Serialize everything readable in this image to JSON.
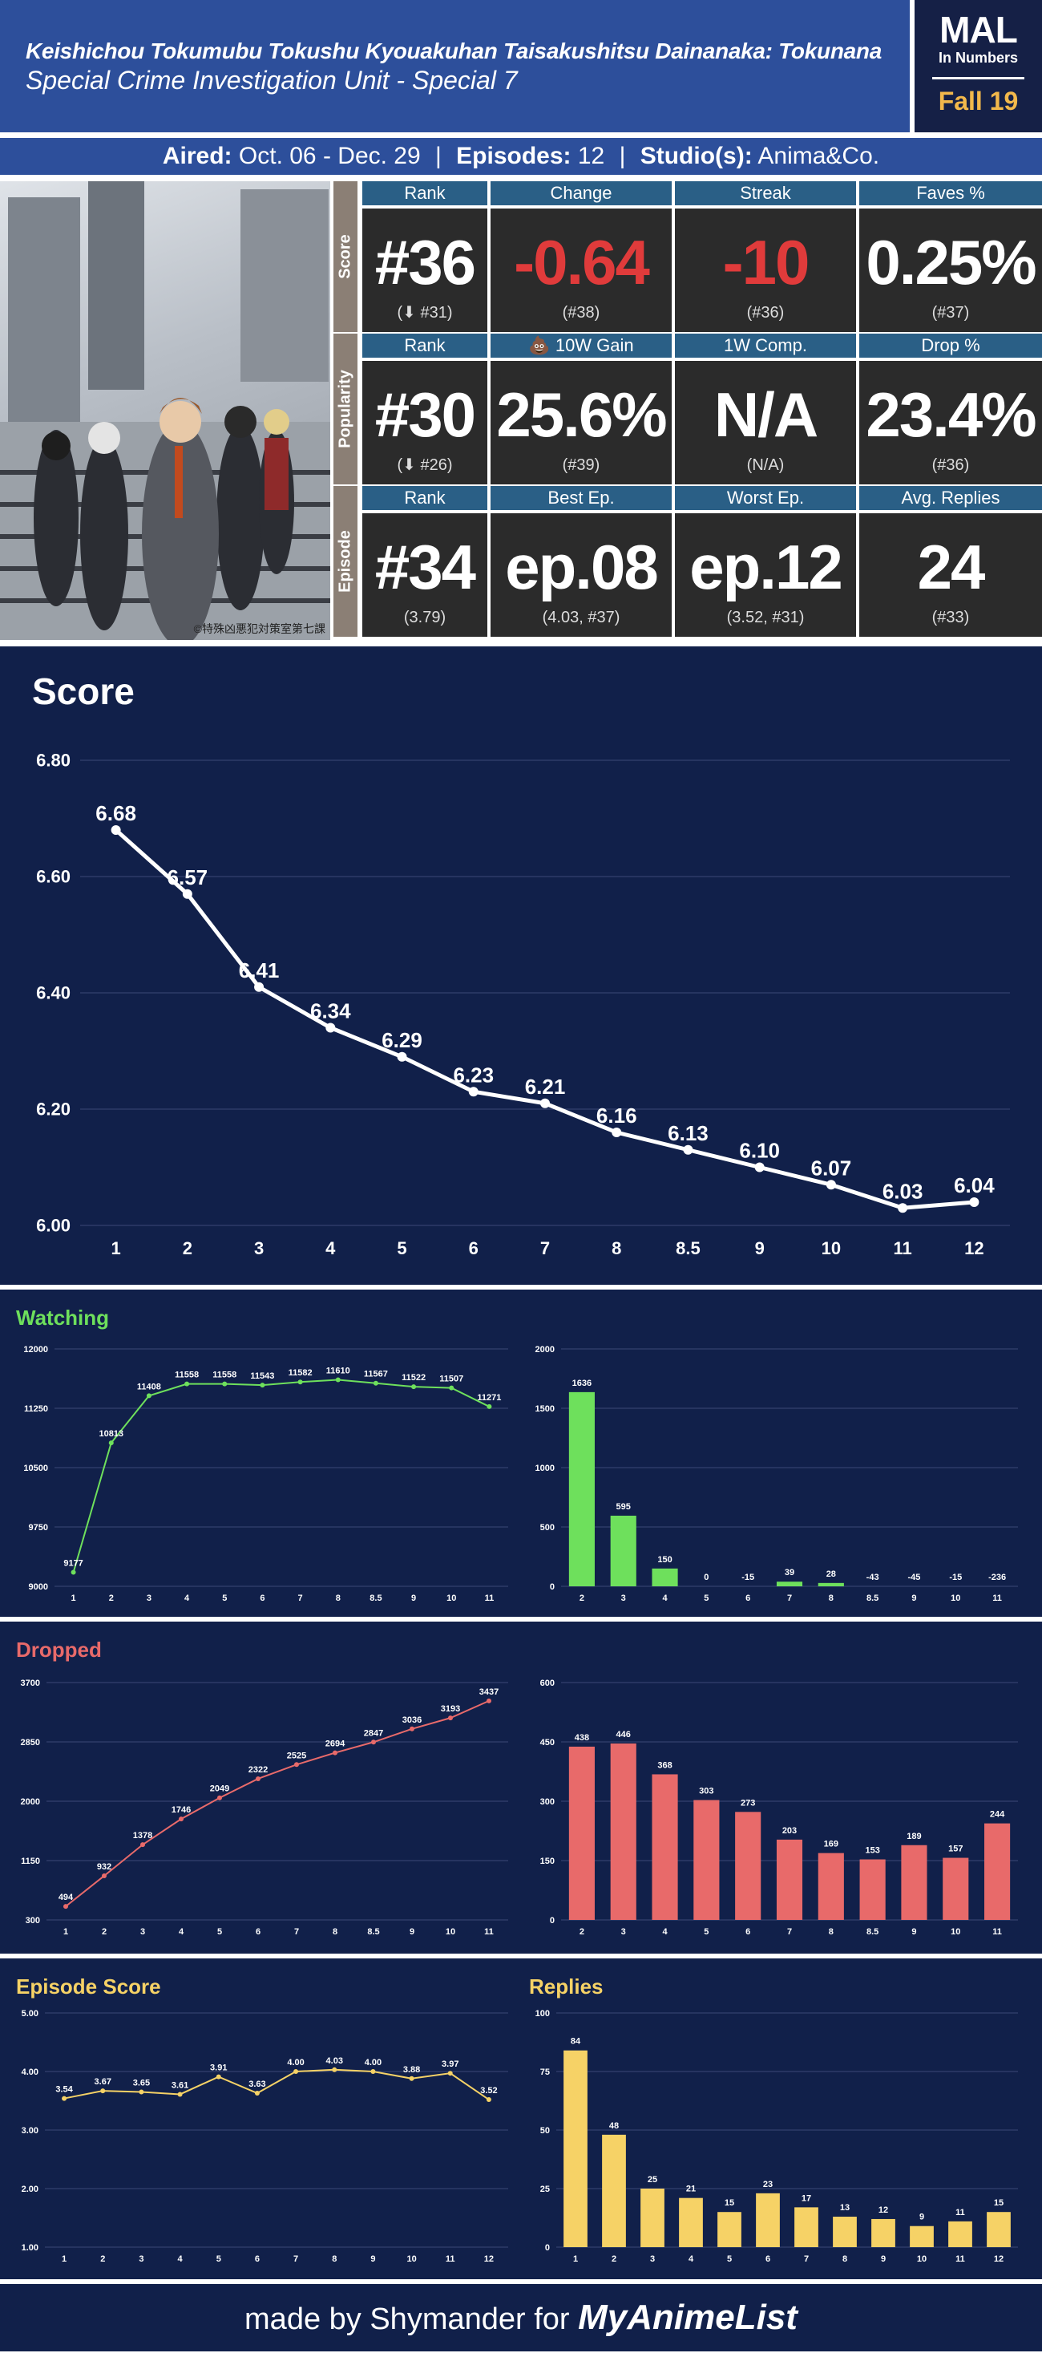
{
  "header": {
    "title_jp": "Keishichou Tokumubu Tokushu Kyouakuhan Taisakushitsu Dainanaka: Tokunana",
    "title_en": "Special Crime Investigation Unit - Special 7",
    "logo_main": "MAL",
    "logo_sub": "In Numbers",
    "season": "Fall 19"
  },
  "info": {
    "aired_label": "Aired:",
    "aired": "Oct. 06 - Dec. 29",
    "episodes_label": "Episodes:",
    "episodes": "12",
    "studio_label": "Studio(s):",
    "studio": "Anima&Co.",
    "sep": "|"
  },
  "cover_caption": "©特殊凶悪犯対策室第七課",
  "stats": {
    "score": {
      "side": "Score",
      "cells": [
        {
          "label": "Rank",
          "value": "#36",
          "sub": "(⬇ #31)",
          "neg": false
        },
        {
          "label": "Change",
          "value": "-0.64",
          "sub": "(#38)",
          "neg": true
        },
        {
          "label": "Streak",
          "value": "-10",
          "sub": "(#36)",
          "neg": true
        },
        {
          "label": "Faves %",
          "value": "0.25%",
          "sub": "(#37)",
          "neg": false
        }
      ]
    },
    "popularity": {
      "side": "Popularity",
      "cells": [
        {
          "label": "Rank",
          "value": "#30",
          "sub": "(⬇ #26)",
          "neg": false
        },
        {
          "label": "💩 10W Gain",
          "value": "25.6%",
          "sub": "(#39)",
          "neg": false
        },
        {
          "label": "1W Comp.",
          "value": "N/A",
          "sub": "(N/A)",
          "neg": false
        },
        {
          "label": "Drop %",
          "value": "23.4%",
          "sub": "(#36)",
          "neg": false
        }
      ]
    },
    "episode": {
      "side": "Episode",
      "cells": [
        {
          "label": "Rank",
          "value": "#34",
          "sub": "(3.79)",
          "neg": false
        },
        {
          "label": "Best Ep.",
          "value": "ep.08",
          "sub": "(4.03, #37)",
          "neg": false
        },
        {
          "label": "Worst Ep.",
          "value": "ep.12",
          "sub": "(3.52, #31)",
          "neg": false
        },
        {
          "label": "Avg. Replies",
          "value": "24",
          "sub": "(#33)",
          "neg": false
        }
      ]
    }
  },
  "footer": {
    "text": "made by Shymander for",
    "brand": "MyAnimeList"
  },
  "colors": {
    "navy": "#11204a",
    "header_blue": "#2d4f9b",
    "green": "#6ee05c",
    "red": "#e86a6a",
    "yellow": "#f6d266"
  },
  "chart_data": [
    {
      "id": "score",
      "type": "line",
      "title": "Score",
      "x": [
        "1",
        "2",
        "3",
        "4",
        "5",
        "6",
        "7",
        "8",
        "8.5",
        "9",
        "10",
        "11",
        "12"
      ],
      "values": [
        6.68,
        6.57,
        6.41,
        6.34,
        6.29,
        6.23,
        6.21,
        6.16,
        6.13,
        6.1,
        6.07,
        6.03,
        6.04
      ],
      "labels": [
        "6.68",
        "6.57",
        "6.41",
        "6.34",
        "6.29",
        "6.23",
        "6.21",
        "6.16",
        "6.13",
        "6.10",
        "6.07",
        "6.03",
        "6.04"
      ],
      "ylim": [
        6.0,
        6.8
      ],
      "yticks": [
        "6.00",
        "6.20",
        "6.40",
        "6.60",
        "6.80"
      ],
      "color": "#ffffff"
    },
    {
      "id": "watching",
      "type": "line",
      "title": "Watching",
      "x": [
        "1",
        "2",
        "3",
        "4",
        "5",
        "6",
        "7",
        "8",
        "8.5",
        "9",
        "10",
        "11"
      ],
      "values": [
        9177,
        10813,
        11408,
        11558,
        11558,
        11543,
        11582,
        11610,
        11567,
        11522,
        11507,
        11271
      ],
      "ylim": [
        9000,
        12000
      ],
      "yticks": [
        "9000",
        "9750",
        "10500",
        "11250",
        "12000"
      ],
      "color": "#6ee05c"
    },
    {
      "id": "watching_diff",
      "type": "bar",
      "x": [
        "2",
        "3",
        "4",
        "5",
        "6",
        "7",
        "8",
        "8.5",
        "9",
        "10",
        "11"
      ],
      "values": [
        1636,
        595,
        150,
        0,
        -15,
        39,
        28,
        -43,
        -45,
        -15,
        -236
      ],
      "ylim": [
        0,
        2000
      ],
      "yticks": [
        "0",
        "500",
        "1000",
        "1500",
        "2000"
      ],
      "color": "#6ee05c"
    },
    {
      "id": "dropped",
      "type": "line",
      "title": "Dropped",
      "x": [
        "1",
        "2",
        "3",
        "4",
        "5",
        "6",
        "7",
        "8",
        "8.5",
        "9",
        "10",
        "11"
      ],
      "values": [
        494,
        932,
        1378,
        1746,
        2049,
        2322,
        2525,
        2694,
        2847,
        3036,
        3193,
        3437
      ],
      "ylim": [
        300,
        3700
      ],
      "yticks": [
        "300",
        "1150",
        "2000",
        "2850",
        "3700"
      ],
      "color": "#e86a6a"
    },
    {
      "id": "dropped_diff",
      "type": "bar",
      "x": [
        "2",
        "3",
        "4",
        "5",
        "6",
        "7",
        "8",
        "8.5",
        "9",
        "10",
        "11"
      ],
      "values": [
        438,
        446,
        368,
        303,
        273,
        203,
        169,
        153,
        189,
        157,
        244
      ],
      "ylim": [
        0,
        600
      ],
      "yticks": [
        "0",
        "150",
        "300",
        "450",
        "600"
      ],
      "color": "#e86a6a"
    },
    {
      "id": "episode_score",
      "type": "line",
      "title": "Episode Score",
      "x": [
        "1",
        "2",
        "3",
        "4",
        "5",
        "6",
        "7",
        "8",
        "9",
        "10",
        "11",
        "12"
      ],
      "values": [
        3.54,
        3.67,
        3.65,
        3.61,
        3.91,
        3.63,
        4.0,
        4.03,
        4.0,
        3.88,
        3.97,
        3.52
      ],
      "labels": [
        "3.54",
        "3.67",
        "3.65",
        "3.61",
        "3.91",
        "3.63",
        "4.00",
        "4.03",
        "4.00",
        "3.88",
        "3.97",
        "3.52"
      ],
      "ylim": [
        1.0,
        5.0
      ],
      "yticks": [
        "1.00",
        "2.00",
        "3.00",
        "4.00",
        "5.00"
      ],
      "color": "#f6d266"
    },
    {
      "id": "replies",
      "type": "bar",
      "title": "Replies",
      "x": [
        "1",
        "2",
        "3",
        "4",
        "5",
        "6",
        "7",
        "8",
        "9",
        "10",
        "11",
        "12"
      ],
      "values": [
        84,
        48,
        25,
        21,
        15,
        23,
        17,
        13,
        12,
        9,
        11,
        15
      ],
      "ylim": [
        0,
        100
      ],
      "yticks": [
        "0",
        "25",
        "50",
        "75",
        "100"
      ],
      "color": "#f6d266"
    }
  ]
}
